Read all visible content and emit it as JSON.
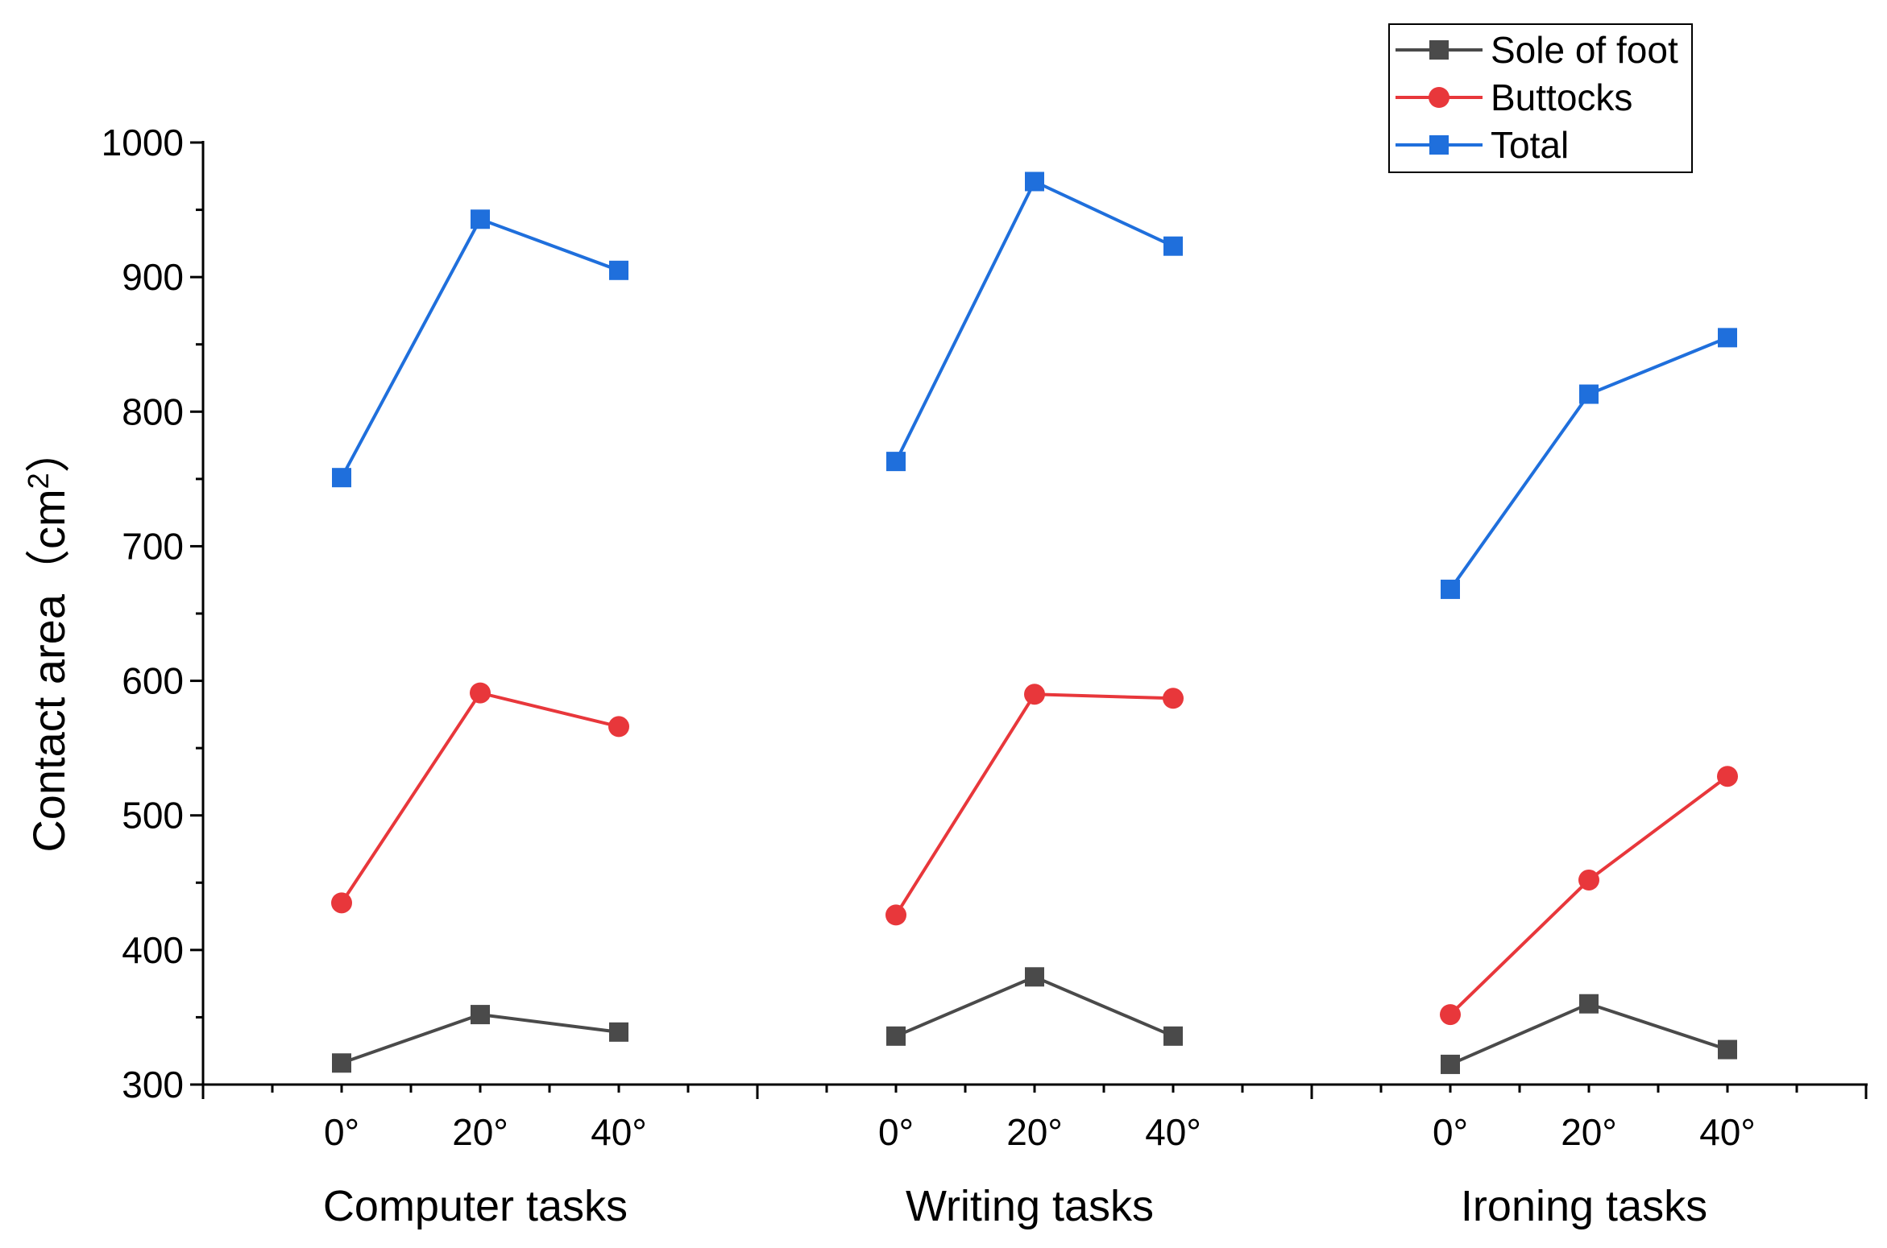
{
  "chart_data": {
    "type": "line",
    "title": "",
    "ylabel": "Contact area（cm",
    "ylabel_sup": "2",
    "ylabel_close": "）",
    "ylim": [
      300,
      1000
    ],
    "yticks": [
      300,
      400,
      500,
      600,
      700,
      800,
      900,
      1000
    ],
    "groups": [
      {
        "name": "Computer tasks",
        "categories": [
          "0°",
          "20°",
          "40°"
        ]
      },
      {
        "name": "Writing tasks",
        "categories": [
          "0°",
          "20°",
          "40°"
        ]
      },
      {
        "name": "Ironing tasks",
        "categories": [
          "0°",
          "20°",
          "40°"
        ]
      }
    ],
    "series": [
      {
        "name": "Sole of foot",
        "color": "#4a4a4a",
        "marker": "square",
        "groups": [
          [
            316,
            352,
            339
          ],
          [
            336,
            380,
            336
          ],
          [
            315,
            360,
            326
          ]
        ]
      },
      {
        "name": "Buttocks",
        "color": "#e8373b",
        "marker": "circle",
        "groups": [
          [
            435,
            591,
            566
          ],
          [
            426,
            590,
            587
          ],
          [
            352,
            452,
            529
          ]
        ]
      },
      {
        "name": "Total",
        "color": "#1f6fdc",
        "marker": "square",
        "groups": [
          [
            751,
            943,
            905
          ],
          [
            763,
            971,
            923
          ],
          [
            668,
            813,
            855
          ]
        ]
      }
    ],
    "legend": {
      "position": "top-right"
    }
  }
}
